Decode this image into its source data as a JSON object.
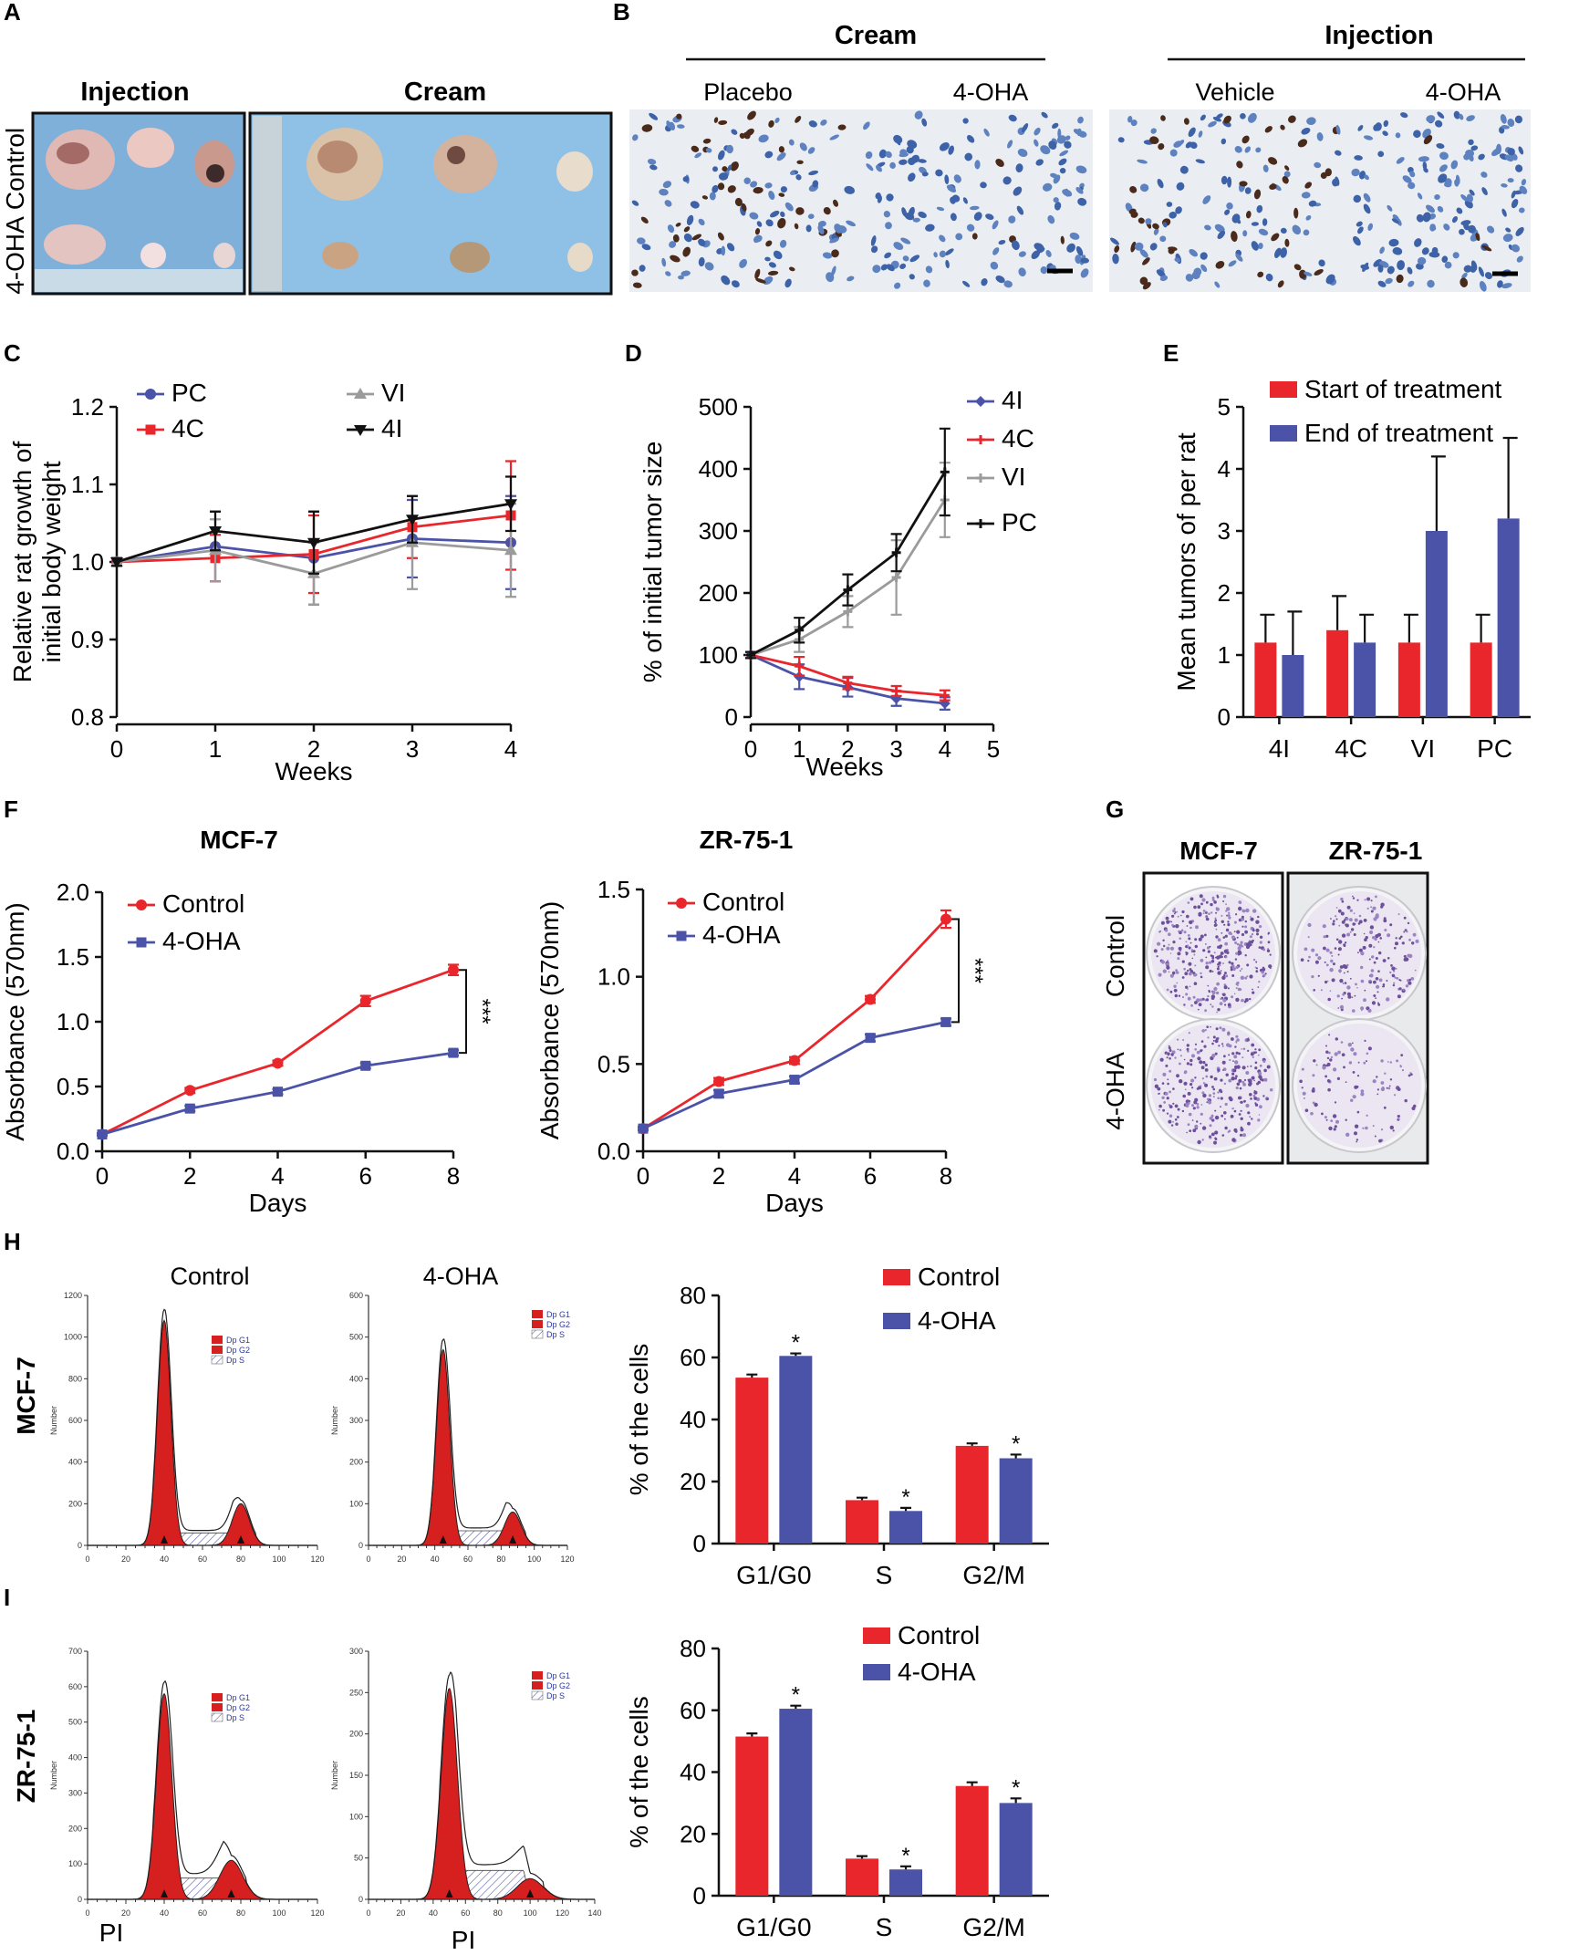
{
  "colors": {
    "red": "#e8262b",
    "blue": "#4a53a8",
    "black": "#111111",
    "gray": "#9b9b9b",
    "hist_red": "#d61f1f"
  },
  "panels": {
    "A": {
      "label": "A",
      "col_injection": "Injection",
      "col_cream": "Cream",
      "row_control": "Control",
      "row_treated": "4-OHA"
    },
    "B": {
      "label": "B",
      "group_cream": "Cream",
      "group_injection": "Injection",
      "sub": [
        "Placebo",
        "4-OHA",
        "Vehicle",
        "4-OHA"
      ]
    },
    "G": {
      "label": "G",
      "col1": "MCF-7",
      "col2": "ZR-75-1",
      "row1": "Control",
      "row2": "4-OHA"
    },
    "H": {
      "label": "H",
      "row_label": "MCF-7",
      "hist_title_1": "Control",
      "hist_title_2": "4-OHA",
      "hist_legend": [
        "Dp G1",
        "Dp G2",
        "Dp S"
      ],
      "hist_ylabel": "Number"
    },
    "I": {
      "label": "I",
      "row_label": "ZR-75-1",
      "hist_legend": [
        "Dp G1",
        "Dp G2",
        "Dp S"
      ],
      "hist_ylabel": "Number",
      "hist_xlabel": "PI"
    }
  },
  "chart_data": [
    {
      "id": "C",
      "panel": "C",
      "type": "line",
      "xlabel": "Weeks",
      "ylabel": "Relative rat growth of initial body weight",
      "ylabel_lines": [
        "Relative rat growth of",
        "initial body weight"
      ],
      "x": [
        0,
        1,
        2,
        3,
        4
      ],
      "xlim": [
        0,
        4
      ],
      "ylim": [
        0.8,
        1.2
      ],
      "yticks": [
        "0.8",
        "0.9",
        "1.0",
        "1.1",
        "1.2"
      ],
      "xticks": [
        "0",
        "1",
        "2",
        "3",
        "4"
      ],
      "series": [
        {
          "name": "PC",
          "color": "#4a53a8",
          "marker": "circle",
          "values": [
            1.0,
            1.02,
            1.005,
            1.03,
            1.025
          ],
          "err": [
            0.005,
            0.045,
            0.06,
            0.05,
            0.06
          ]
        },
        {
          "name": "4C",
          "color": "#e8262b",
          "marker": "square",
          "values": [
            1.0,
            1.005,
            1.01,
            1.045,
            1.06
          ],
          "err": [
            0.005,
            0.03,
            0.05,
            0.04,
            0.07
          ]
        },
        {
          "name": "VI",
          "color": "#9b9b9b",
          "marker": "triangle",
          "values": [
            1.0,
            1.015,
            0.985,
            1.025,
            1.015
          ],
          "err": [
            0.005,
            0.04,
            0.04,
            0.06,
            0.06
          ]
        },
        {
          "name": "4I",
          "color": "#111111",
          "marker": "tridown",
          "values": [
            1.0,
            1.04,
            1.025,
            1.055,
            1.075
          ],
          "err": [
            0.005,
            0.025,
            0.04,
            0.03,
            0.035
          ]
        }
      ]
    },
    {
      "id": "D",
      "panel": "D",
      "type": "line",
      "xlabel": "Weeks",
      "ylabel": "% of initial tumor size",
      "ylabel_lines": [
        "% of initial tumor size"
      ],
      "x": [
        0,
        1,
        2,
        3,
        4
      ],
      "xlim": [
        0,
        5
      ],
      "ylim": [
        0,
        500
      ],
      "yticks": [
        "0",
        "100",
        "200",
        "300",
        "400",
        "500"
      ],
      "xticks": [
        "0",
        "1",
        "2",
        "3",
        "4",
        "5"
      ],
      "series": [
        {
          "name": "4I",
          "color": "#4a53a8",
          "marker": "diamond",
          "values": [
            100,
            65,
            48,
            30,
            22
          ],
          "err": [
            5,
            20,
            15,
            12,
            10
          ]
        },
        {
          "name": "4C",
          "color": "#e8262b",
          "marker": "cross",
          "values": [
            100,
            82,
            55,
            42,
            35
          ],
          "err": [
            5,
            15,
            10,
            8,
            8
          ]
        },
        {
          "name": "VI",
          "color": "#9b9b9b",
          "marker": "cross",
          "values": [
            100,
            125,
            170,
            225,
            350
          ],
          "err": [
            5,
            20,
            25,
            60,
            60
          ]
        },
        {
          "name": "PC",
          "color": "#111111",
          "marker": "cross",
          "values": [
            100,
            140,
            205,
            265,
            395
          ],
          "err": [
            5,
            20,
            25,
            30,
            70
          ]
        }
      ]
    },
    {
      "id": "E",
      "panel": "E",
      "type": "bar",
      "ylabel": "Mean tumors of  per rat",
      "ylabel_lines": [
        "Mean tumors of  per rat"
      ],
      "categories": [
        "4I",
        "4C",
        "VI",
        "PC"
      ],
      "ylim": [
        0,
        5
      ],
      "yticks": [
        "0",
        "1",
        "2",
        "3",
        "4",
        "5"
      ],
      "series": [
        {
          "name": "Start of treatment",
          "color": "#e8262b",
          "values": [
            1.2,
            1.4,
            1.2,
            1.2
          ],
          "err": [
            0.45,
            0.55,
            0.45,
            0.45
          ]
        },
        {
          "name": "End of treatment",
          "color": "#4a53a8",
          "values": [
            1.0,
            1.2,
            3.0,
            3.2
          ],
          "err": [
            0.7,
            0.45,
            1.2,
            1.3
          ]
        }
      ]
    },
    {
      "id": "F1",
      "panel": "F",
      "type": "line",
      "title": "MCF-7",
      "xlabel": "Days",
      "ylabel": "Absorbance (570nm)",
      "ylabel_lines": [
        "Absorbance (570nm)"
      ],
      "x": [
        0,
        2,
        4,
        6,
        8
      ],
      "xlim": [
        0,
        8
      ],
      "ylim": [
        0,
        2.0
      ],
      "yticks": [
        "0.0",
        "0.5",
        "1.0",
        "1.5",
        "2.0"
      ],
      "xticks": [
        "0",
        "2",
        "4",
        "6",
        "8"
      ],
      "significance": "***",
      "series": [
        {
          "name": "Control",
          "color": "#e8262b",
          "marker": "circle",
          "values": [
            0.13,
            0.47,
            0.68,
            1.16,
            1.4
          ],
          "err": [
            0.01,
            0.02,
            0.02,
            0.04,
            0.04
          ]
        },
        {
          "name": "4-OHA",
          "color": "#4a53a8",
          "marker": "square",
          "values": [
            0.13,
            0.33,
            0.46,
            0.66,
            0.76
          ],
          "err": [
            0.01,
            0.02,
            0.02,
            0.02,
            0.02
          ]
        }
      ]
    },
    {
      "id": "F2",
      "panel": "F",
      "type": "line",
      "title": "ZR-75-1",
      "xlabel": "Days",
      "ylabel": "Absorbance (570nm)",
      "ylabel_lines": [
        "Absorbance (570nm)"
      ],
      "x": [
        0,
        2,
        4,
        6,
        8
      ],
      "xlim": [
        0,
        8
      ],
      "ylim": [
        0,
        1.5
      ],
      "yticks": [
        "0.0",
        "0.5",
        "1.0",
        "1.5"
      ],
      "xticks": [
        "0",
        "2",
        "4",
        "6",
        "8"
      ],
      "significance": "***",
      "series": [
        {
          "name": "Control",
          "color": "#e8262b",
          "marker": "circle",
          "values": [
            0.13,
            0.4,
            0.52,
            0.87,
            1.33
          ],
          "err": [
            0.01,
            0.02,
            0.02,
            0.02,
            0.05
          ]
        },
        {
          "name": "4-OHA",
          "color": "#4a53a8",
          "marker": "square",
          "values": [
            0.13,
            0.33,
            0.41,
            0.65,
            0.74
          ],
          "err": [
            0.01,
            0.02,
            0.02,
            0.02,
            0.02
          ]
        }
      ]
    },
    {
      "id": "H_bar",
      "panel": "H",
      "type": "bar",
      "ylabel": "% of the cells",
      "ylabel_lines": [
        "% of the cells"
      ],
      "categories": [
        "G1/G0",
        "S",
        "G2/M"
      ],
      "ylim": [
        0,
        80
      ],
      "yticks": [
        "0",
        "20",
        "40",
        "60",
        "80"
      ],
      "stars": [
        "*",
        "*",
        "*"
      ],
      "series": [
        {
          "name": "Control",
          "color": "#e8262b",
          "values": [
            53.5,
            14,
            31.5
          ],
          "err": [
            1,
            0.8,
            0.8
          ]
        },
        {
          "name": "4-OHA",
          "color": "#4a53a8",
          "values": [
            60.5,
            10.5,
            27.5
          ],
          "err": [
            0.8,
            1,
            1.2
          ]
        }
      ]
    },
    {
      "id": "I_bar",
      "panel": "I",
      "type": "bar",
      "ylabel": "% of the cells",
      "ylabel_lines": [
        "% of the cells"
      ],
      "categories": [
        "G1/G0",
        "S",
        "G2/M"
      ],
      "ylim": [
        0,
        80
      ],
      "yticks": [
        "0",
        "20",
        "40",
        "60",
        "80"
      ],
      "stars": [
        "*",
        "*",
        "*"
      ],
      "series": [
        {
          "name": "Control",
          "color": "#e8262b",
          "values": [
            51.5,
            12,
            35.5
          ],
          "err": [
            1,
            0.8,
            1.2
          ]
        },
        {
          "name": "4-OHA",
          "color": "#4a53a8",
          "values": [
            60.5,
            8.5,
            30
          ],
          "err": [
            1,
            1,
            1.5
          ]
        }
      ]
    },
    {
      "id": "H_hist1",
      "panel": "H",
      "type": "histogram",
      "title": "Control",
      "xlim": [
        0,
        120
      ],
      "ylim": [
        0,
        1200
      ],
      "xticks": [
        "0",
        "20",
        "40",
        "60",
        "80",
        "100",
        "120"
      ],
      "yticks": [
        "0",
        "200",
        "400",
        "600",
        "800",
        "1000",
        "1200"
      ],
      "peaks": [
        {
          "pos": 40,
          "height": 1080,
          "width": 3.5
        },
        {
          "pos": 80,
          "height": 200,
          "width": 4.5
        }
      ],
      "s_level": 60
    },
    {
      "id": "H_hist2",
      "panel": "H",
      "type": "histogram",
      "title": "4-OHA",
      "xlim": [
        0,
        120
      ],
      "ylim": [
        0,
        600
      ],
      "xticks": [
        "0",
        "20",
        "40",
        "60",
        "80",
        "100",
        "120"
      ],
      "yticks": [
        "0",
        "100",
        "200",
        "300",
        "400",
        "500",
        "600"
      ],
      "peaks": [
        {
          "pos": 45,
          "height": 470,
          "width": 4
        },
        {
          "pos": 87,
          "height": 80,
          "width": 5
        }
      ],
      "s_level": 35
    },
    {
      "id": "I_hist1",
      "panel": "I",
      "type": "histogram",
      "xlim": [
        0,
        120
      ],
      "ylim": [
        0,
        700
      ],
      "xticks": [
        "0",
        "20",
        "40",
        "60",
        "80",
        "100",
        "120"
      ],
      "yticks": [
        "0",
        "100",
        "200",
        "300",
        "400",
        "500",
        "600",
        "700"
      ],
      "peaks": [
        {
          "pos": 40,
          "height": 580,
          "width": 4
        },
        {
          "pos": 75,
          "height": 110,
          "width": 6
        }
      ],
      "s_level": 60
    },
    {
      "id": "I_hist2",
      "panel": "I",
      "type": "histogram",
      "xlim": [
        0,
        140
      ],
      "ylim": [
        0,
        300
      ],
      "xticks": [
        "0",
        "20",
        "40",
        "60",
        "80",
        "100",
        "120",
        "140"
      ],
      "yticks": [
        "0",
        "50",
        "100",
        "150",
        "200",
        "250",
        "300"
      ],
      "peaks": [
        {
          "pos": 50,
          "height": 255,
          "width": 5
        },
        {
          "pos": 100,
          "height": 25,
          "width": 8
        }
      ],
      "s_level": 35
    }
  ]
}
